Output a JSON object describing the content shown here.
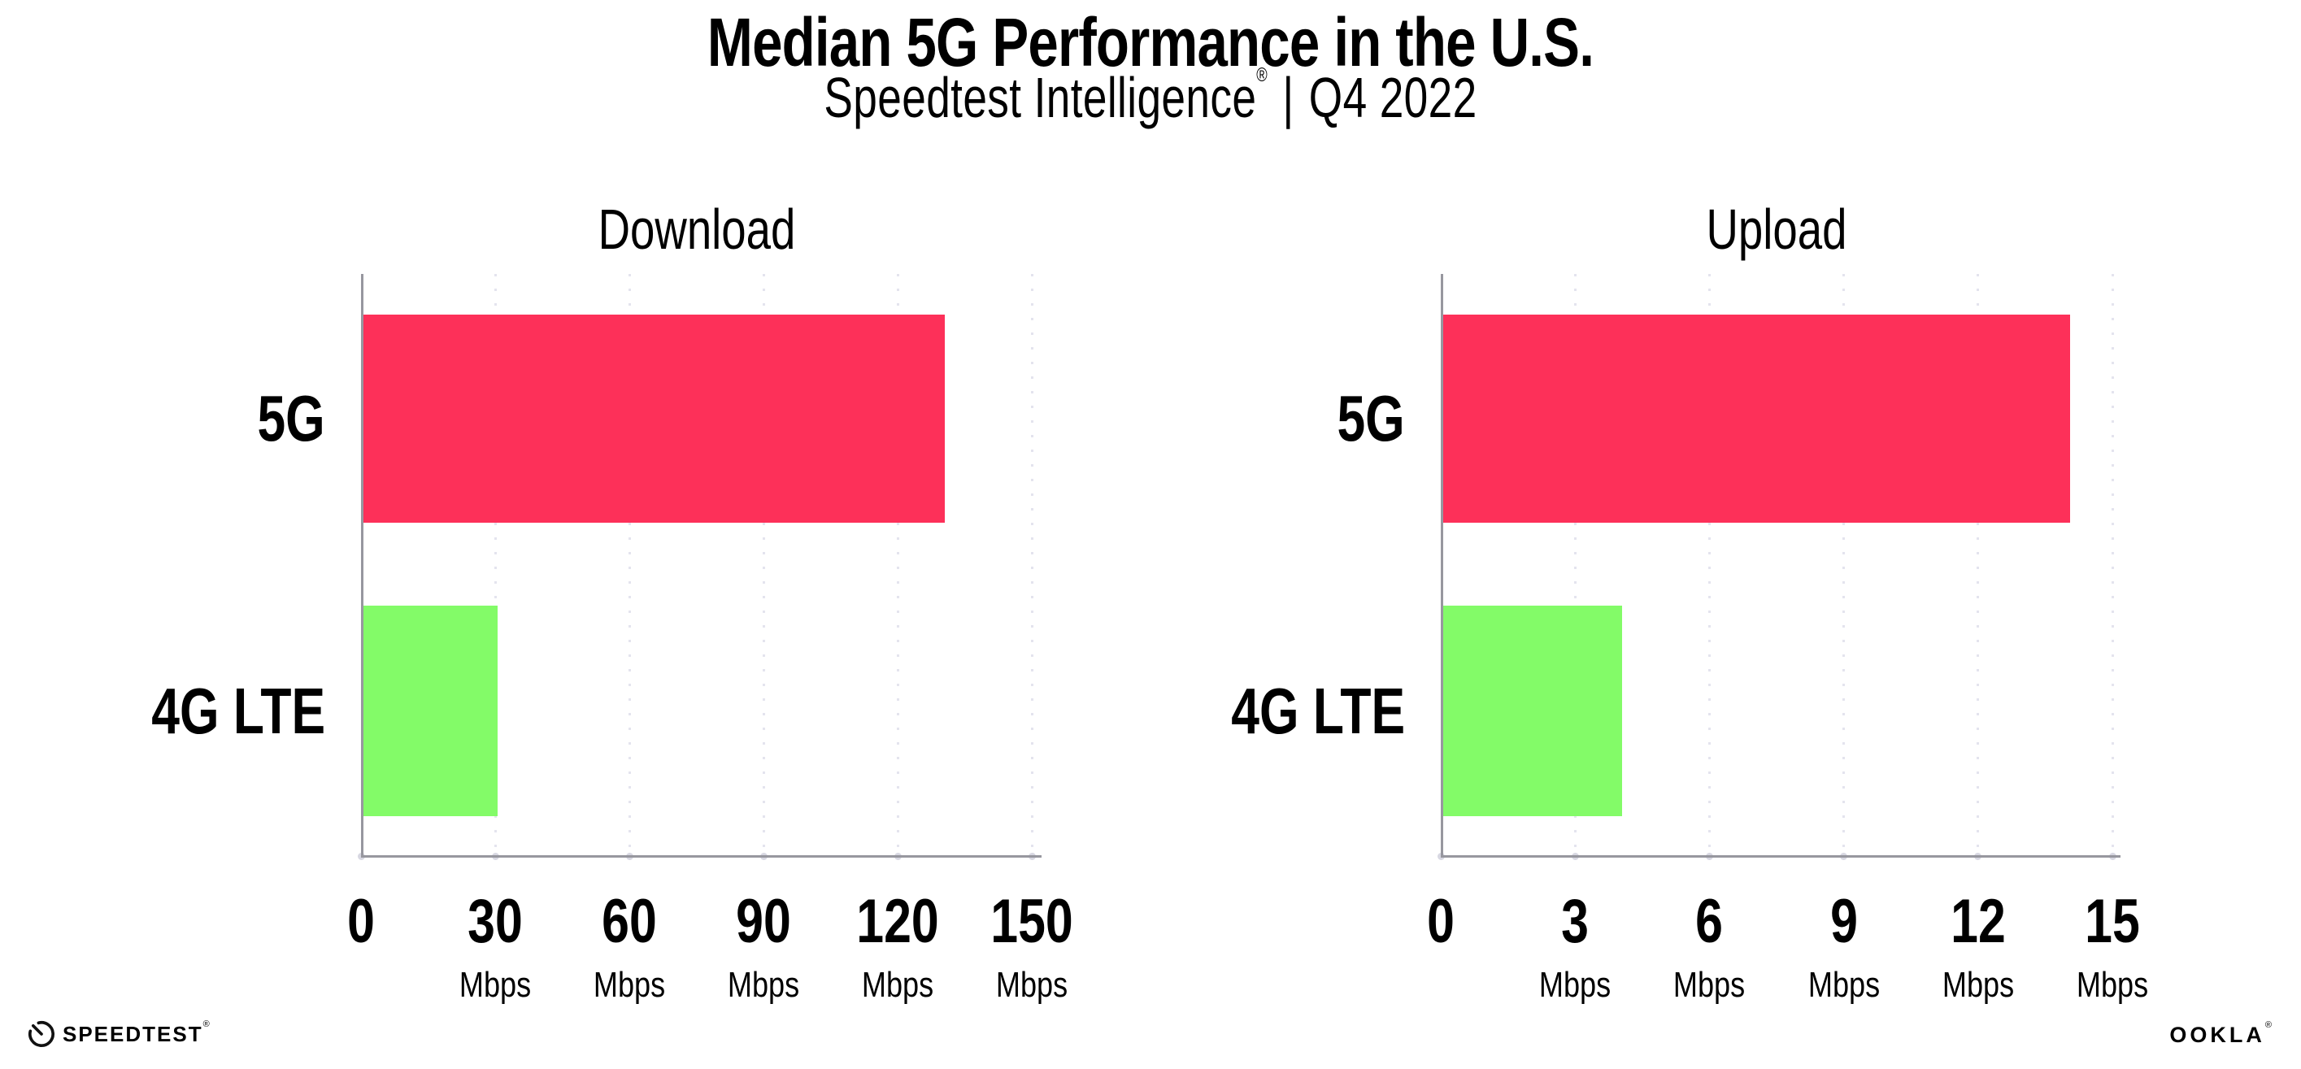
{
  "header": {
    "title": "Median 5G Performance in the U.S.",
    "subtitle": {
      "brand": "Speedtest Intelligence",
      "registered_mark": "®",
      "separator": "|",
      "period": "Q4 2022"
    }
  },
  "chart_data": [
    {
      "type": "bar",
      "orientation": "horizontal",
      "title": "Download",
      "categories": [
        "5G",
        "4G LTE"
      ],
      "values": [
        130,
        30
      ],
      "unit": "Mbps",
      "xlabel": "",
      "xlim": [
        0,
        150
      ],
      "xticks": [
        0,
        30,
        60,
        90,
        120,
        150
      ],
      "bar_colors": [
        "#FD3059",
        "#83FB68"
      ],
      "grid": "dotted-vertical-gridlines",
      "legend": "none"
    },
    {
      "type": "bar",
      "orientation": "horizontal",
      "title": "Upload",
      "categories": [
        "5G",
        "4G LTE"
      ],
      "values": [
        14,
        4
      ],
      "unit": "Mbps",
      "xlabel": "",
      "xlim": [
        0,
        15
      ],
      "xticks": [
        0,
        3,
        6,
        9,
        12,
        15
      ],
      "bar_colors": [
        "#FD3059",
        "#83FB68"
      ],
      "grid": "dotted-vertical-gridlines",
      "legend": "none"
    }
  ],
  "footer": {
    "speedtest_wordmark": "SPEEDTEST",
    "speedtest_mark": "®",
    "ookla_wordmark": "OOKLA",
    "ookla_mark": "®"
  },
  "colors": {
    "bar_5g": "#FD3059",
    "bar_4g_lte": "#83FB68",
    "axis_line": "#97979F",
    "tick_dot": "#D8D8E2",
    "gridline_dot": "#E4E4EE",
    "text": "#000000",
    "background": "#FFFFFF"
  }
}
